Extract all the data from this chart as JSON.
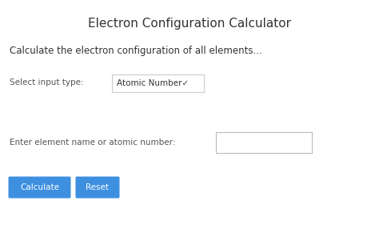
{
  "title": "Electron Configuration Calculator",
  "subtitle": "Calculate the electron configuration of all elements...",
  "label_input_type": "Select input type:",
  "dropdown_text": "Atomic Number✓",
  "label_element": "Enter element name or atomic number:",
  "btn1_text": "Calculate",
  "btn2_text": "Reset",
  "bg_color": "#ffffff",
  "title_color": "#333333",
  "subtitle_color": "#333333",
  "label_color": "#555555",
  "dropdown_bg": "#ffffff",
  "dropdown_border": "#cccccc",
  "input_bg": "#ffffff",
  "input_border": "#bbbbbb",
  "btn_color": "#3d8fe0",
  "btn_text_color": "#ffffff",
  "title_fontsize": 11,
  "subtitle_fontsize": 8.5,
  "label_fontsize": 7.5,
  "btn_fontsize": 7.5,
  "dropdown_fontsize": 7.5
}
